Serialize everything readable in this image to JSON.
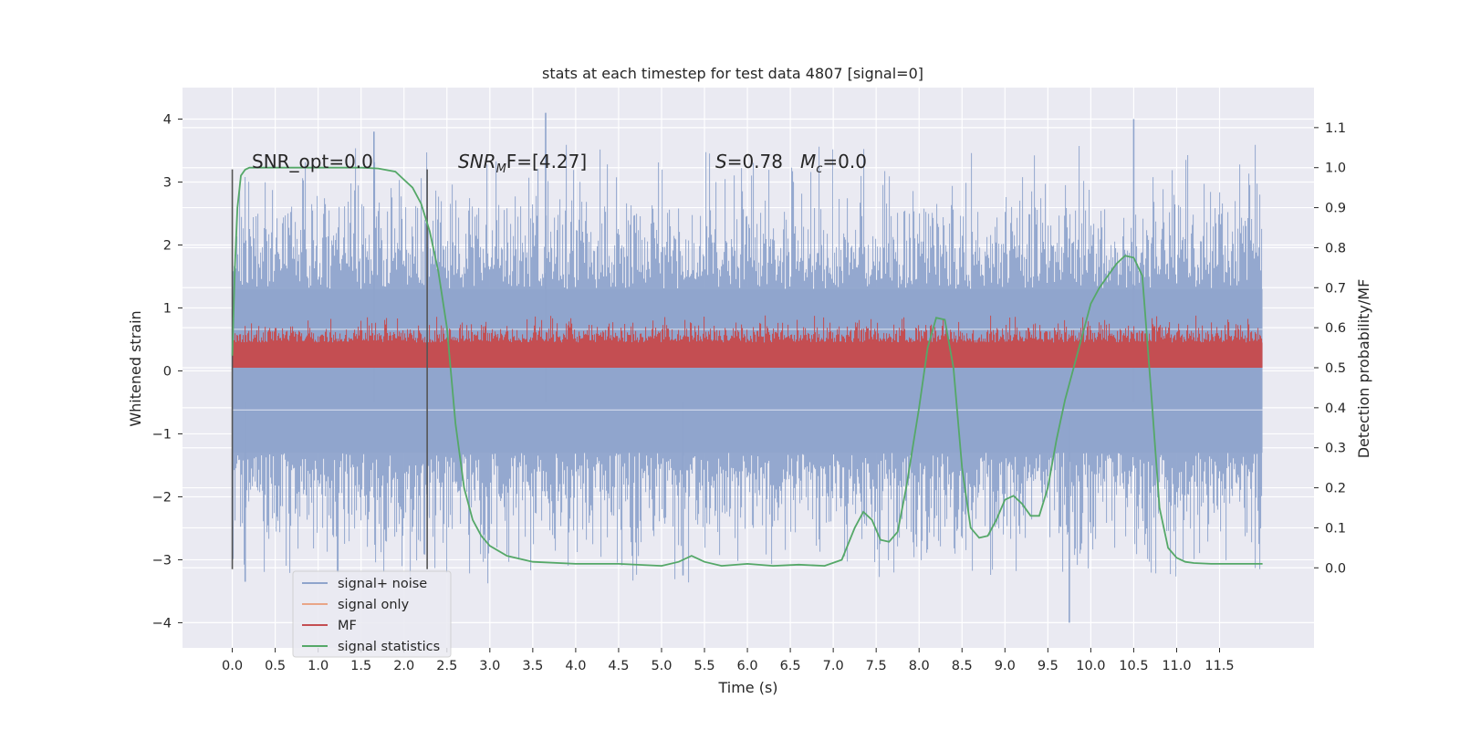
{
  "chart_data": {
    "type": "line",
    "title": "stats at each timestep for test data 4807 [signal=0]",
    "xlabel": "Time (s)",
    "ylabel": "Whitened strain",
    "ylabel_right": "Detection probability/MF",
    "xlim": [
      -0.58,
      12.6
    ],
    "ylim": [
      -4.4,
      4.5
    ],
    "ylim_right": [
      -0.2,
      1.2
    ],
    "x_ticks": [
      0.0,
      0.5,
      1.0,
      1.5,
      2.0,
      2.5,
      3.0,
      3.5,
      4.0,
      4.5,
      5.0,
      5.5,
      6.0,
      6.5,
      7.0,
      7.5,
      8.0,
      8.5,
      9.0,
      9.5,
      10.0,
      10.5,
      11.0,
      11.5
    ],
    "x_tick_labels": [
      "0.0",
      "0.5",
      "1.0",
      "1.5",
      "2.0",
      "2.5",
      "3.0",
      "3.5",
      "4.0",
      "4.5",
      "5.0",
      "5.5",
      "6.0",
      "6.5",
      "7.0",
      "7.5",
      "8.0",
      "8.5",
      "9.0",
      "9.5",
      "10.0",
      "10.5",
      "11.0",
      "11.5"
    ],
    "y_ticks": [
      -4,
      -3,
      -2,
      -1,
      0,
      1,
      2,
      3,
      4
    ],
    "y_tick_labels": [
      "−4",
      "−3",
      "−2",
      "−1",
      "0",
      "1",
      "2",
      "3",
      "4"
    ],
    "y_right_ticks": [
      0.0,
      0.1,
      0.2,
      0.3,
      0.4,
      0.5,
      0.6,
      0.7,
      0.8,
      0.9,
      1.0,
      1.1
    ],
    "y_right_tick_labels": [
      "0.0",
      "0.1",
      "0.2",
      "0.3",
      "0.4",
      "0.5",
      "0.6",
      "0.7",
      "0.8",
      "0.9",
      "1.0",
      "1.1"
    ],
    "grid": true,
    "legend_position": "bottom-left",
    "annotations": {
      "snr_opt": "SNR_opt=0.0",
      "snr_mf_main": "SNR",
      "snr_mf_sub": "M",
      "snr_mf_rest": "F=[4.27]",
      "s_main": "S",
      "s_rest": "=0.78",
      "mc_main": "M",
      "mc_sub": "c",
      "mc_rest": "=0.0"
    },
    "vertical_lines_x": [
      0.0,
      2.27
    ],
    "vertical_lines_yrange": [
      -3.15,
      3.2
    ],
    "series": [
      {
        "name": "signal+ noise",
        "color": "#8fa4cc",
        "style": "dense noise",
        "x_range": [
          0.0,
          12.0
        ],
        "body_range": [
          -1.3,
          1.3
        ],
        "extreme_range": [
          -4.0,
          4.1
        ]
      },
      {
        "name": "signal only",
        "color": "#e9a587",
        "style": "line",
        "values_constant": 0.0
      },
      {
        "name": "MF",
        "color": "#c44e52",
        "style": "dense noise",
        "x_range": [
          0.0,
          12.0
        ],
        "body_range": [
          0.05,
          0.6
        ],
        "extreme_range": [
          0.05,
          0.88
        ]
      },
      {
        "name": "signal statistics",
        "color": "#55a868",
        "style": "line",
        "axis": "right",
        "x": [
          0.0,
          0.03,
          0.06,
          0.1,
          0.15,
          0.2,
          0.3,
          0.5,
          1.0,
          1.5,
          1.7,
          1.9,
          2.0,
          2.1,
          2.2,
          2.3,
          2.4,
          2.5,
          2.55,
          2.6,
          2.7,
          2.8,
          2.9,
          3.0,
          3.2,
          3.5,
          4.0,
          4.5,
          5.0,
          5.2,
          5.35,
          5.5,
          5.7,
          6.0,
          6.3,
          6.6,
          6.9,
          7.1,
          7.25,
          7.35,
          7.45,
          7.55,
          7.65,
          7.75,
          7.85,
          8.0,
          8.1,
          8.2,
          8.3,
          8.4,
          8.5,
          8.6,
          8.7,
          8.8,
          8.9,
          9.0,
          9.1,
          9.2,
          9.3,
          9.4,
          9.5,
          9.6,
          9.7,
          9.8,
          9.9,
          10.0,
          10.1,
          10.2,
          10.3,
          10.4,
          10.5,
          10.6,
          10.7,
          10.8,
          10.9,
          11.0,
          11.1,
          11.2,
          11.4,
          11.7,
          12.0
        ],
        "y": [
          0.53,
          0.75,
          0.9,
          0.98,
          0.995,
          1.0,
          1.0,
          1.0,
          1.0,
          1.0,
          0.998,
          0.99,
          0.97,
          0.95,
          0.91,
          0.84,
          0.74,
          0.6,
          0.48,
          0.36,
          0.2,
          0.12,
          0.08,
          0.055,
          0.03,
          0.015,
          0.01,
          0.01,
          0.005,
          0.015,
          0.03,
          0.015,
          0.005,
          0.01,
          0.005,
          0.008,
          0.005,
          0.02,
          0.1,
          0.14,
          0.12,
          0.07,
          0.065,
          0.09,
          0.2,
          0.4,
          0.55,
          0.625,
          0.62,
          0.5,
          0.25,
          0.1,
          0.075,
          0.08,
          0.12,
          0.17,
          0.18,
          0.16,
          0.13,
          0.13,
          0.2,
          0.32,
          0.42,
          0.5,
          0.58,
          0.66,
          0.7,
          0.73,
          0.76,
          0.78,
          0.775,
          0.73,
          0.45,
          0.15,
          0.05,
          0.025,
          0.015,
          0.012,
          0.01,
          0.01,
          0.01
        ]
      }
    ]
  }
}
